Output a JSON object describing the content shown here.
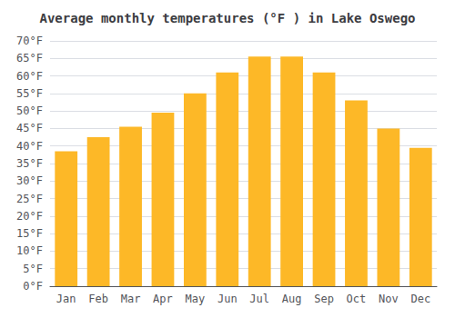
{
  "chart_data": {
    "type": "bar",
    "title": "Average monthly temperatures (°F ) in Lake Oswego",
    "categories": [
      "Jan",
      "Feb",
      "Mar",
      "Apr",
      "May",
      "Jun",
      "Jul",
      "Aug",
      "Sep",
      "Oct",
      "Nov",
      "Dec"
    ],
    "values": [
      38.5,
      42.5,
      45.5,
      49.5,
      55.0,
      61.0,
      65.5,
      65.5,
      61.0,
      53.0,
      45.0,
      39.5
    ],
    "color": "#FDB827",
    "ylim": [
      0,
      70
    ],
    "yticks": [
      {
        "value": 0,
        "label": "0°F"
      },
      {
        "value": 5,
        "label": "5°F"
      },
      {
        "value": 10,
        "label": "10°F"
      },
      {
        "value": 15,
        "label": "15°F"
      },
      {
        "value": 20,
        "label": "20°F"
      },
      {
        "value": 25,
        "label": "25°F"
      },
      {
        "value": 30,
        "label": "30°F"
      },
      {
        "value": 35,
        "label": "35°F"
      },
      {
        "value": 40,
        "label": "40°F"
      },
      {
        "value": 45,
        "label": "45°F"
      },
      {
        "value": 50,
        "label": "50°F"
      },
      {
        "value": 55,
        "label": "55°F"
      },
      {
        "value": 60,
        "label": "60°F"
      },
      {
        "value": 65,
        "label": "65°F"
      },
      {
        "value": 70,
        "label": "70°F"
      }
    ],
    "grid": true
  }
}
